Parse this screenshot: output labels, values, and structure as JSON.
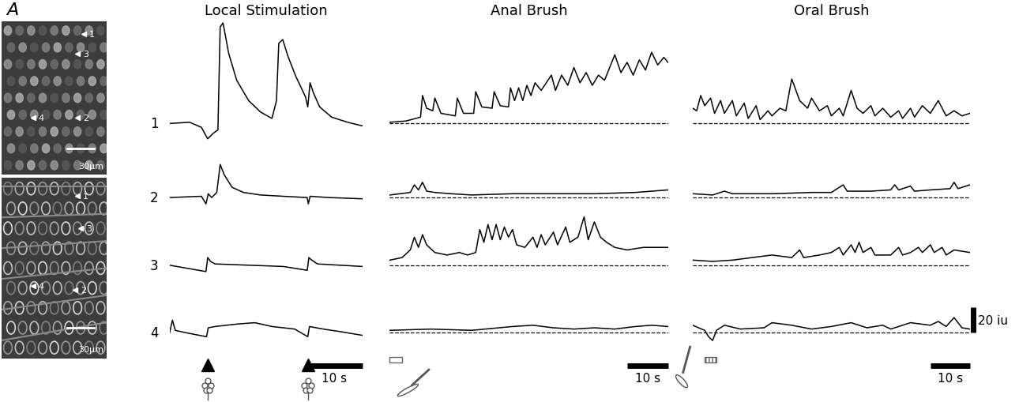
{
  "panel_label": "A",
  "images": [
    {
      "scale_bar": "30µm",
      "cell_labels": [
        "1",
        "2",
        "3",
        "4"
      ]
    },
    {
      "scale_bar": "30µm",
      "cell_labels": [
        "1",
        "2",
        "3",
        "4"
      ]
    }
  ],
  "cells": [
    "1",
    "2",
    "3",
    "4"
  ],
  "scale_bar_y": {
    "value": 20,
    "label": "20 iu"
  },
  "panels": [
    {
      "title": "Local Stimulation",
      "scale_bar_x": {
        "value": 10,
        "label": "10 s"
      },
      "stimulus_times": [
        6.7,
        24.3
      ]
    },
    {
      "title": "Anal Brush",
      "scale_bar_x": {
        "value": 10,
        "label": "10 s"
      },
      "stimulus": [
        0,
        3
      ]
    },
    {
      "title": "Oral Brush",
      "scale_bar_x": {
        "value": 10,
        "label": "10 s"
      },
      "stimulus": [
        3,
        6
      ]
    }
  ],
  "chart_data": [
    {
      "type": "line",
      "color": "#000000",
      "tick_labels": false,
      "xlim": [
        0,
        34
      ],
      "ylim": [
        -15,
        85
      ],
      "x": [
        0,
        3.5,
        5.6,
        6.7,
        7.6,
        8.5,
        8.9,
        9.4,
        10.4,
        11.8,
        13.9,
        16,
        18,
        18.8,
        19.2,
        19.9,
        20.8,
        22.2,
        23.9,
        24.3,
        24.7,
        25.3,
        26.4,
        28.5,
        31.3,
        34
      ],
      "values": [
        0,
        1,
        -3,
        -12,
        -8,
        -5,
        76,
        79,
        55,
        34,
        18,
        9,
        4,
        18,
        63,
        66,
        53,
        37,
        21,
        13,
        32,
        24,
        13,
        5,
        1,
        -2
      ]
    },
    {
      "type": "line",
      "color": "#000000",
      "tick_labels": false,
      "xlim": [
        0,
        34
      ],
      "ylim": [
        -10,
        40
      ],
      "x": [
        0,
        5.6,
        6.4,
        6.8,
        7.4,
        8.3,
        8.9,
        9.6,
        11,
        13,
        16,
        20,
        24.2,
        24.4,
        24.7,
        28,
        34
      ],
      "values": [
        0,
        1,
        -5,
        3,
        0,
        4,
        26,
        18,
        8,
        4,
        2,
        1,
        0,
        -5,
        1,
        0,
        -1
      ]
    },
    {
      "type": "line",
      "color": "#000000",
      "tick_labels": false,
      "xlim": [
        0,
        34
      ],
      "ylim": [
        -10,
        40
      ],
      "x": [
        0,
        6.4,
        6.7,
        7.2,
        8,
        14,
        20,
        24.2,
        24.5,
        25,
        26,
        30,
        34
      ],
      "values": [
        0,
        -5,
        6,
        3,
        1,
        0,
        -1,
        -4,
        6,
        4,
        1,
        0,
        -1
      ]
    },
    {
      "type": "line",
      "color": "#000000",
      "tick_labels": false,
      "xlim": [
        0,
        34
      ],
      "ylim": [
        -10,
        40
      ],
      "x": [
        0,
        0.5,
        1,
        3,
        6.5,
        6.8,
        8,
        12,
        15,
        18,
        22,
        24.3,
        24.6,
        27,
        30,
        34
      ],
      "values": [
        0,
        10,
        2,
        0,
        -3,
        4,
        5,
        7,
        8,
        5,
        3,
        -3,
        5,
        3,
        1,
        -2
      ]
    },
    {
      "type": "line",
      "color": "#000000",
      "tick_labels": false,
      "xlim": [
        0,
        68
      ],
      "ylim": [
        -15,
        85
      ],
      "baseline": {
        "value": 0,
        "line_style": "dashed"
      },
      "x": [
        0,
        4,
        7.5,
        8,
        9,
        10.5,
        11,
        12.5,
        16,
        16.5,
        18,
        20.5,
        21,
        22.5,
        25,
        25.5,
        27,
        29,
        29.5,
        30.5,
        31.5,
        32.5,
        33.5,
        34.5,
        35.5,
        37,
        39.5,
        40.5,
        42,
        43.5,
        45,
        46.5,
        48,
        49.5,
        51,
        52.5,
        55,
        56.5,
        58,
        59.5,
        61,
        62.5,
        64,
        65.5,
        67,
        68
      ],
      "values": [
        1,
        2,
        5,
        22,
        12,
        10,
        20,
        8,
        6,
        20,
        8,
        8,
        25,
        13,
        12,
        25,
        14,
        13,
        28,
        18,
        28,
        18,
        30,
        22,
        32,
        26,
        38,
        26,
        38,
        30,
        44,
        32,
        40,
        30,
        38,
        34,
        54,
        40,
        48,
        38,
        50,
        42,
        56,
        46,
        52,
        48
      ]
    },
    {
      "type": "line",
      "color": "#000000",
      "tick_labels": false,
      "xlim": [
        0,
        68
      ],
      "ylim": [
        -10,
        40
      ],
      "baseline": {
        "value": 0,
        "line_style": "dashed"
      },
      "x": [
        0,
        5,
        6,
        7,
        8,
        9,
        11,
        15,
        20,
        30,
        40,
        50,
        60,
        68
      ],
      "values": [
        2,
        4,
        10,
        6,
        12,
        5,
        4,
        3,
        2,
        3,
        3,
        3,
        4,
        6
      ]
    },
    {
      "type": "line",
      "color": "#000000",
      "tick_labels": false,
      "xlim": [
        0,
        68
      ],
      "ylim": [
        -10,
        40
      ],
      "baseline": {
        "value": 0,
        "line_style": "dashed"
      },
      "x": [
        0,
        3,
        5,
        6,
        7,
        8,
        9,
        11,
        14,
        17,
        19,
        21,
        22,
        23,
        24,
        25,
        26,
        27,
        28,
        29,
        30,
        31,
        33,
        35,
        36,
        37,
        38,
        40,
        41,
        43,
        44,
        46,
        47.5,
        48.5,
        50,
        51.5,
        53,
        55,
        58,
        62,
        68
      ],
      "values": [
        4,
        6,
        12,
        22,
        14,
        24,
        16,
        10,
        8,
        10,
        8,
        10,
        28,
        18,
        32,
        20,
        32,
        20,
        30,
        22,
        28,
        16,
        14,
        22,
        14,
        24,
        16,
        26,
        16,
        30,
        18,
        22,
        38,
        20,
        34,
        22,
        18,
        14,
        12,
        14,
        14
      ]
    },
    {
      "type": "line",
      "color": "#000000",
      "tick_labels": false,
      "xlim": [
        0,
        68
      ],
      "ylim": [
        -10,
        40
      ],
      "baseline": {
        "value": 0,
        "line_style": "dashed"
      },
      "x": [
        0,
        10,
        20,
        30,
        35,
        40,
        45,
        50,
        55,
        60,
        64,
        68
      ],
      "values": [
        2,
        3,
        2,
        5,
        6,
        4,
        3,
        4,
        3,
        5,
        6,
        5
      ]
    },
    {
      "type": "line",
      "color": "#000000",
      "tick_labels": false,
      "xlim": [
        0,
        70
      ],
      "ylim": [
        -15,
        85
      ],
      "baseline": {
        "value": 0,
        "line_style": "dashed"
      },
      "x": [
        0,
        1,
        2,
        3,
        4.5,
        5.5,
        7,
        8,
        10,
        11,
        13,
        14,
        16,
        17,
        19,
        20,
        22,
        23.5,
        25,
        27,
        29,
        30,
        32,
        34,
        35,
        37,
        38,
        40,
        41.5,
        43,
        45,
        46,
        48,
        50,
        52,
        53,
        55,
        56,
        58,
        60,
        62,
        64,
        66,
        68,
        70
      ],
      "values": [
        12,
        10,
        22,
        14,
        20,
        8,
        18,
        8,
        18,
        6,
        16,
        4,
        14,
        3,
        10,
        6,
        12,
        10,
        35,
        18,
        12,
        20,
        10,
        14,
        6,
        12,
        6,
        26,
        12,
        8,
        14,
        6,
        12,
        5,
        10,
        4,
        12,
        5,
        14,
        8,
        18,
        6,
        10,
        6,
        8
      ]
    },
    {
      "type": "line",
      "color": "#000000",
      "tick_labels": false,
      "xlim": [
        0,
        70
      ],
      "ylim": [
        -10,
        40
      ],
      "baseline": {
        "value": 0,
        "line_style": "dashed"
      },
      "x": [
        0,
        5,
        8,
        10,
        20,
        30,
        35,
        38,
        39,
        45,
        50,
        51,
        52,
        55,
        56,
        60,
        65,
        66,
        67,
        70
      ],
      "values": [
        3,
        2,
        5,
        3,
        3,
        4,
        4,
        10,
        5,
        5,
        6,
        10,
        6,
        9,
        5,
        6,
        7,
        12,
        7,
        10
      ]
    },
    {
      "type": "line",
      "color": "#000000",
      "tick_labels": false,
      "xlim": [
        0,
        70
      ],
      "ylim": [
        -10,
        40
      ],
      "baseline": {
        "value": 0,
        "line_style": "dashed"
      },
      "x": [
        0,
        5,
        10,
        15,
        20,
        25,
        27,
        28,
        32,
        35,
        37,
        38,
        40,
        41,
        42,
        43,
        45,
        46,
        50,
        52,
        53,
        55,
        57,
        58,
        60,
        61,
        63,
        64,
        66,
        70
      ],
      "values": [
        4,
        3,
        4,
        6,
        8,
        6,
        12,
        6,
        8,
        10,
        14,
        8,
        16,
        10,
        18,
        10,
        14,
        8,
        8,
        14,
        8,
        10,
        14,
        10,
        16,
        10,
        14,
        8,
        12,
        10
      ]
    },
    {
      "type": "line",
      "color": "#000000",
      "tick_labels": false,
      "xlim": [
        0,
        70
      ],
      "ylim": [
        -10,
        40
      ],
      "baseline": {
        "value": 0,
        "line_style": "dashed"
      },
      "x": [
        0,
        3,
        4,
        5,
        6,
        8,
        12,
        18,
        20,
        25,
        30,
        35,
        40,
        44,
        48,
        50,
        55,
        60,
        62,
        64,
        66,
        68,
        70
      ],
      "values": [
        6,
        2,
        -3,
        -6,
        2,
        6,
        3,
        4,
        8,
        6,
        3,
        5,
        8,
        4,
        6,
        3,
        8,
        6,
        9,
        5,
        12,
        4,
        3
      ]
    }
  ]
}
